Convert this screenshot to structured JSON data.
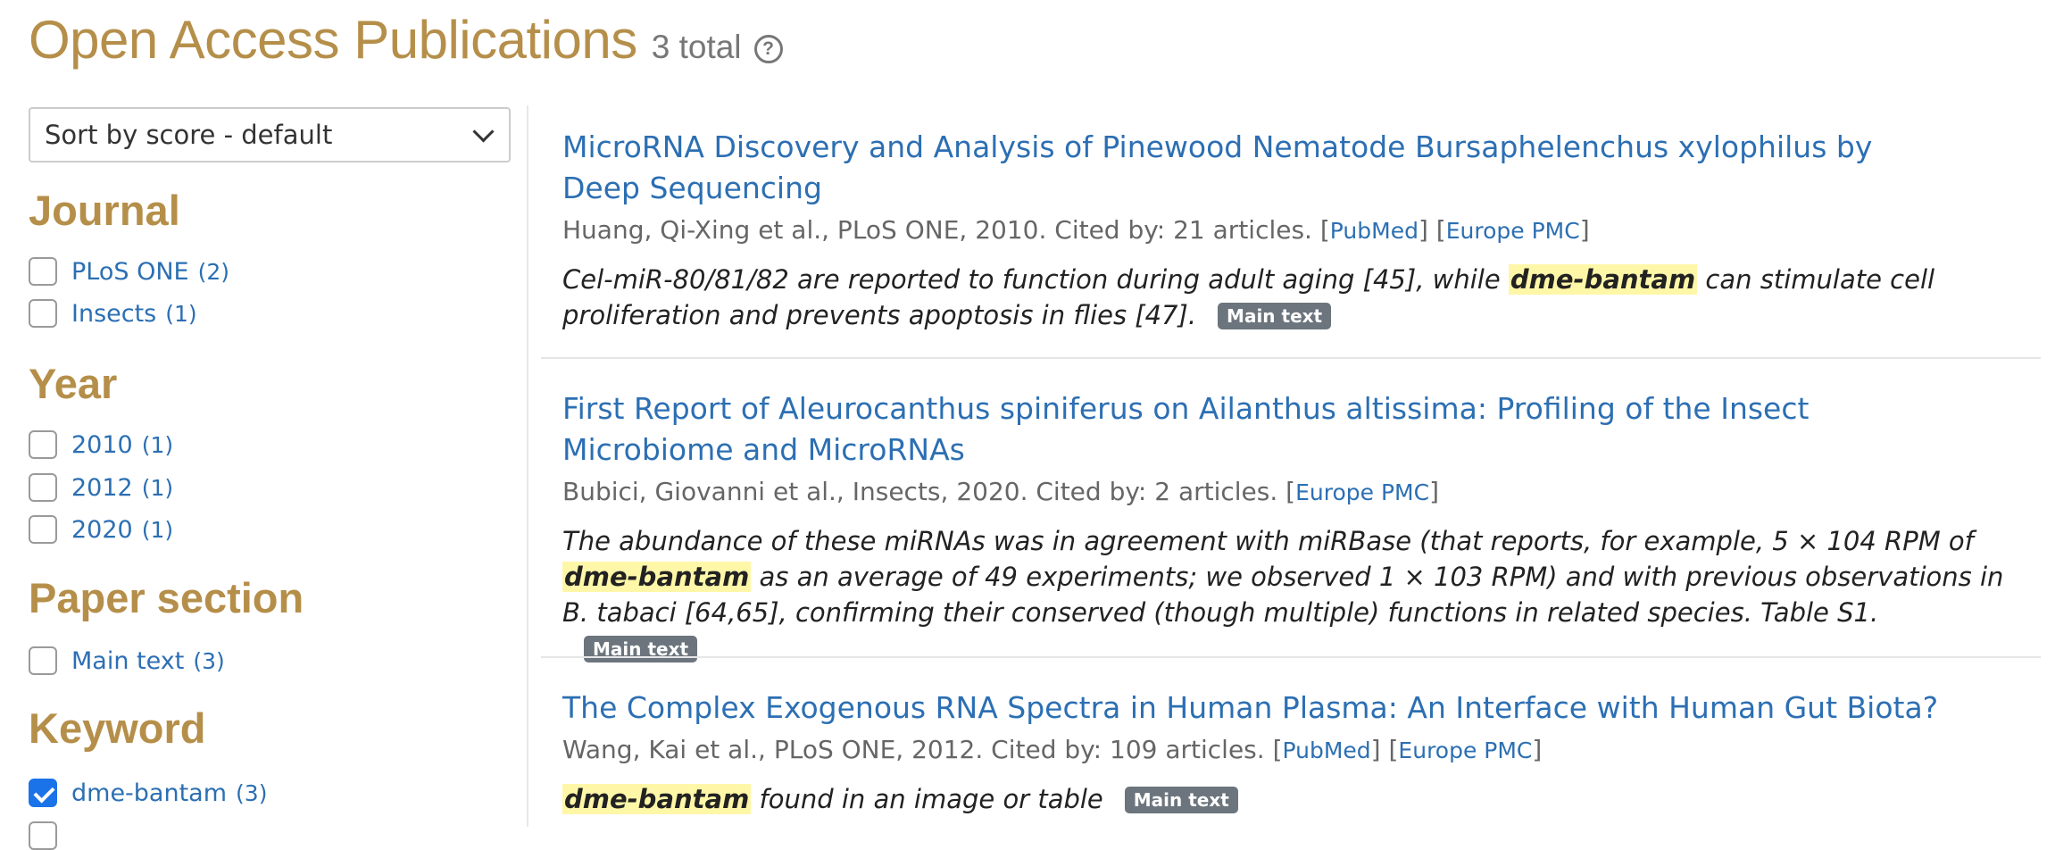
{
  "header": {
    "title": "Open Access Publications",
    "total": "3 total",
    "help_glyph": "?"
  },
  "sort": {
    "selected": "Sort by score - default"
  },
  "facets": {
    "journal": {
      "title": "Journal",
      "items": [
        {
          "label": "PLoS ONE",
          "count": "(2)"
        },
        {
          "label": "Insects",
          "count": "(1)"
        }
      ]
    },
    "year": {
      "title": "Year",
      "items": [
        {
          "label": "2010",
          "count": "(1)"
        },
        {
          "label": "2012",
          "count": "(1)"
        },
        {
          "label": "2020",
          "count": "(1)"
        }
      ]
    },
    "section": {
      "title": "Paper section",
      "items": [
        {
          "label": "Main text",
          "count": "(3)"
        }
      ]
    },
    "keyword": {
      "title": "Keyword",
      "items": [
        {
          "label": "dme-bantam",
          "count": "(3)",
          "checked": true
        }
      ]
    }
  },
  "results": [
    {
      "title": "MicroRNA Discovery and Analysis of Pinewood Nematode Bursaphelenchus xylophilus by Deep Sequencing",
      "meta": "Huang, Qi-Xing et al., PLoS ONE, 2010. Cited by: 21 articles.",
      "links": [
        "PubMed",
        "Europe PMC"
      ],
      "snippet_before": "Cel-miR-80/81/82 are reported to function during adult aging [45], while ",
      "highlight": "dme-bantam",
      "snippet_after": " can stimulate cell proliferation and prevents apoptosis in flies [47].",
      "badge": "Main text"
    },
    {
      "title": "First Report of Aleurocanthus spiniferus on Ailanthus altissima: Profiling of the Insect Microbiome and MicroRNAs",
      "meta": "Bubici, Giovanni et al., Insects, 2020. Cited by: 2 articles.",
      "links": [
        "Europe PMC"
      ],
      "snippet_before": "The abundance of these miRNAs was in agreement with miRBase (that reports, for example, 5 × 104 RPM of ",
      "highlight": "dme-bantam",
      "snippet_after": " as an average of 49 experiments; we observed 1 × 103 RPM) and with previous observations in B. tabaci [64,65], confirming their conserved (though multiple) functions in related species. Table S1.",
      "badge": "Main text"
    },
    {
      "title": "The Complex Exogenous RNA Spectra in Human Plasma: An Interface with Human Gut Biota?",
      "meta": "Wang, Kai et al., PLoS ONE, 2012. Cited by: 109 articles.",
      "links": [
        "PubMed",
        "Europe PMC"
      ],
      "snippet_before": "",
      "highlight": "dme-bantam",
      "snippet_after": " found in an image or table",
      "badge": "Main text"
    }
  ]
}
